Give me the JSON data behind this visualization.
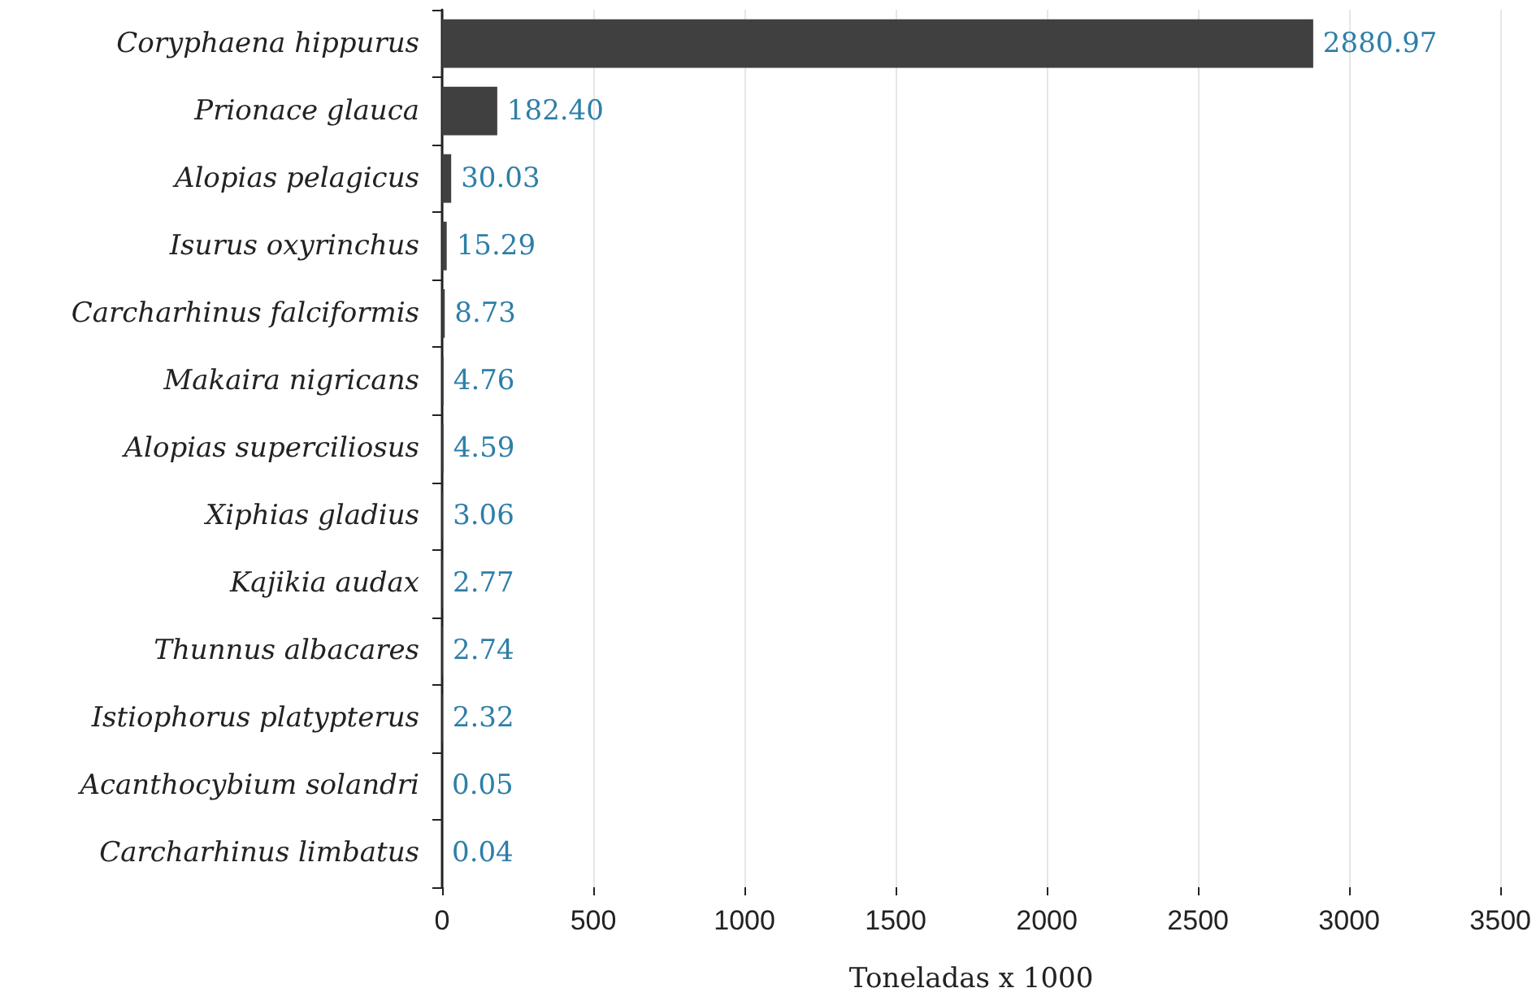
{
  "chart_data": {
    "type": "bar",
    "orientation": "horizontal",
    "xlabel": "Toneladas x 1000",
    "categories": [
      "Coryphaena hippurus",
      "Prionace glauca",
      "Alopias pelagicus",
      "Isurus oxyrinchus",
      "Carcharhinus falciformis",
      "Makaira nigricans",
      "Alopias superciliosus",
      "Xiphias gladius",
      "Kajikia audax",
      "Thunnus albacares",
      "Istiophorus platypterus",
      "Acanthocybium solandri",
      "Carcharhinus limbatus"
    ],
    "values": [
      2880.97,
      182.4,
      30.03,
      15.29,
      8.73,
      4.76,
      4.59,
      3.06,
      2.77,
      2.74,
      2.32,
      0.05,
      0.04
    ],
    "value_labels": [
      "2880.97",
      "182.40",
      "30.03",
      "15.29",
      "8.73",
      "4.76",
      "4.59",
      "3.06",
      "2.77",
      "2.74",
      "2.32",
      "0.05",
      "0.04"
    ],
    "color": "#404040",
    "xlim": [
      0,
      3500
    ],
    "xticks": [
      0,
      500,
      1000,
      1500,
      2000,
      2500,
      3000,
      3500
    ],
    "grid": "x"
  }
}
